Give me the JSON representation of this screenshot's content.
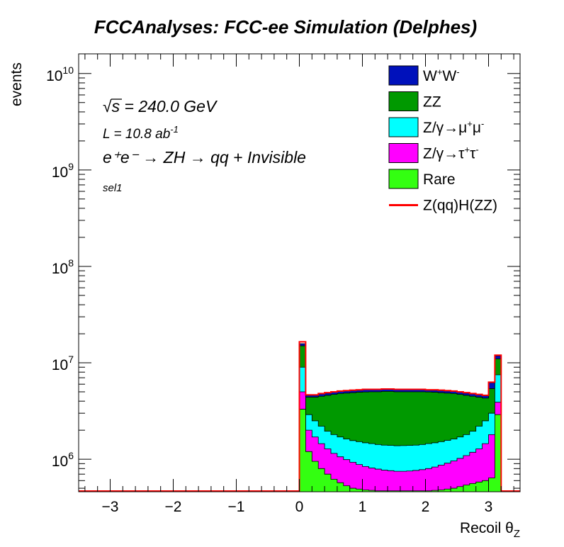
{
  "chart_data": {
    "type": "area",
    "title": "FCCAnalyses: FCC-ee Simulation (Delphes)",
    "xlabel": "Recoil θ",
    "xlabel_sub": "Z",
    "ylabel": "events",
    "xlim": [
      -3.5,
      3.5
    ],
    "ylim": [
      460000,
      16000000000
    ],
    "log_y": true,
    "grid": false,
    "legend_position": "top-right",
    "annotations": {
      "sqrt": "√",
      "s_label": "s",
      "energy": " = 240.0 GeV",
      "lumi": "L = 10.8 ab",
      "lumi_exp": "-1",
      "process": "e⁺e⁻ → ZH → qq + Invisible",
      "selection": "sel1"
    },
    "x_ticks": [
      {
        "value": -3,
        "label": "−3"
      },
      {
        "value": -2,
        "label": "−2"
      },
      {
        "value": -1,
        "label": "−1"
      },
      {
        "value": 0,
        "label": "0"
      },
      {
        "value": 1,
        "label": "1"
      },
      {
        "value": 2,
        "label": "2"
      },
      {
        "value": 3,
        "label": "3"
      }
    ],
    "y_ticks": [
      {
        "value": 1000000,
        "base": "10",
        "exp": "6"
      },
      {
        "value": 10000000,
        "base": "10",
        "exp": "7"
      },
      {
        "value": 100000000,
        "base": "10",
        "exp": "8"
      },
      {
        "value": 1000000000,
        "base": "10",
        "exp": "9"
      },
      {
        "value": 10000000000,
        "base": "10",
        "exp": "10"
      }
    ],
    "bins": {
      "x_start": 0.0,
      "x_end": 3.2,
      "edges": [
        0,
        0.1,
        0.2,
        0.3,
        0.4,
        0.5,
        0.6,
        0.7,
        0.8,
        0.9,
        1.0,
        1.1,
        1.2,
        1.3,
        1.4,
        1.5,
        1.6,
        1.7,
        1.8,
        1.9,
        2.0,
        2.1,
        2.2,
        2.3,
        2.4,
        2.5,
        2.6,
        2.7,
        2.8,
        2.9,
        3.0,
        3.1,
        3.2
      ]
    },
    "series": [
      {
        "name": "Rare",
        "color": "#33ff11",
        "values": [
          3300000,
          1200000,
          950000,
          800000,
          700000,
          620000,
          570000,
          530000,
          500000,
          490000,
          480000,
          475000,
          470000,
          470000,
          470000,
          470000,
          470000,
          470000,
          470000,
          470000,
          470000,
          475000,
          480000,
          490000,
          500000,
          520000,
          540000,
          560000,
          580000,
          600000,
          640000,
          2900000
        ]
      },
      {
        "name": "Z/γ→τ⁺τ⁻",
        "color": "#ff00ff",
        "values": [
          5000000,
          2000000,
          1700000,
          1450000,
          1280000,
          1150000,
          1060000,
          990000,
          930000,
          880000,
          840000,
          810000,
          790000,
          770000,
          760000,
          750000,
          750000,
          755000,
          765000,
          780000,
          800000,
          830000,
          870000,
          910000,
          960000,
          1020000,
          1090000,
          1180000,
          1280000,
          1450000,
          1800000,
          3900000
        ]
      },
      {
        "name": "Z/γ→μ⁺μ⁻",
        "color": "#00ffff",
        "values": [
          9000000,
          2900000,
          2500000,
          2200000,
          1950000,
          1800000,
          1700000,
          1620000,
          1560000,
          1520000,
          1480000,
          1450000,
          1420000,
          1400000,
          1390000,
          1380000,
          1385000,
          1390000,
          1400000,
          1420000,
          1450000,
          1480000,
          1520000,
          1570000,
          1620000,
          1700000,
          1800000,
          1950000,
          2200000,
          2500000,
          3000000,
          7500000
        ]
      },
      {
        "name": "ZZ",
        "color": "#009900",
        "values": [
          15000000,
          4400000,
          4400000,
          4500000,
          4600000,
          4700000,
          4800000,
          4850000,
          4900000,
          4950000,
          4980000,
          5000000,
          5000000,
          5050000,
          5050000,
          5000000,
          5000000,
          5000000,
          5000000,
          5000000,
          4980000,
          4950000,
          4900000,
          4850000,
          4800000,
          4700000,
          4600000,
          4500000,
          4400000,
          4300000,
          5400000,
          11000000
        ]
      },
      {
        "name": "W⁺W⁻",
        "color": "#0011bb",
        "values": [
          15800000,
          4600000,
          4600000,
          4750000,
          4850000,
          4950000,
          5050000,
          5100000,
          5150000,
          5200000,
          5250000,
          5250000,
          5250000,
          5300000,
          5300000,
          5250000,
          5250000,
          5250000,
          5250000,
          5250000,
          5200000,
          5200000,
          5150000,
          5100000,
          5050000,
          4950000,
          4850000,
          4750000,
          4650000,
          4550000,
          6200000,
          11800000
        ]
      },
      {
        "name": "Z(qq)H(ZZ)",
        "color": "#ff0000",
        "values": [
          16500000,
          4650000,
          4650000,
          4800000,
          4900000,
          5000000,
          5100000,
          5150000,
          5200000,
          5250000,
          5300000,
          5300000,
          5300000,
          5350000,
          5350000,
          5300000,
          5300000,
          5300000,
          5300000,
          5300000,
          5250000,
          5250000,
          5200000,
          5150000,
          5100000,
          5000000,
          4900000,
          4800000,
          4700000,
          4600000,
          6300000,
          12000000
        ]
      }
    ],
    "legend": [
      {
        "key": "ww",
        "label": "W",
        "sup1": "+",
        "label2": "W",
        "sup2": "-",
        "color": "#0011bb",
        "kind": "box"
      },
      {
        "key": "zz",
        "label": "ZZ",
        "color": "#009900",
        "kind": "box"
      },
      {
        "key": "mumu",
        "label": "Z/γ→μ",
        "sup1": "+",
        "label2": "μ",
        "sup2": "-",
        "color": "#00ffff",
        "kind": "box"
      },
      {
        "key": "tautau",
        "label": "Z/γ→τ",
        "sup1": "+",
        "label2": "τ",
        "sup2": "-",
        "color": "#ff00ff",
        "kind": "box"
      },
      {
        "key": "rare",
        "label": "Rare",
        "color": "#33ff11",
        "kind": "box"
      },
      {
        "key": "signal",
        "label": "Z(qq)H(ZZ)",
        "color": "#ff0000",
        "kind": "line"
      }
    ]
  }
}
